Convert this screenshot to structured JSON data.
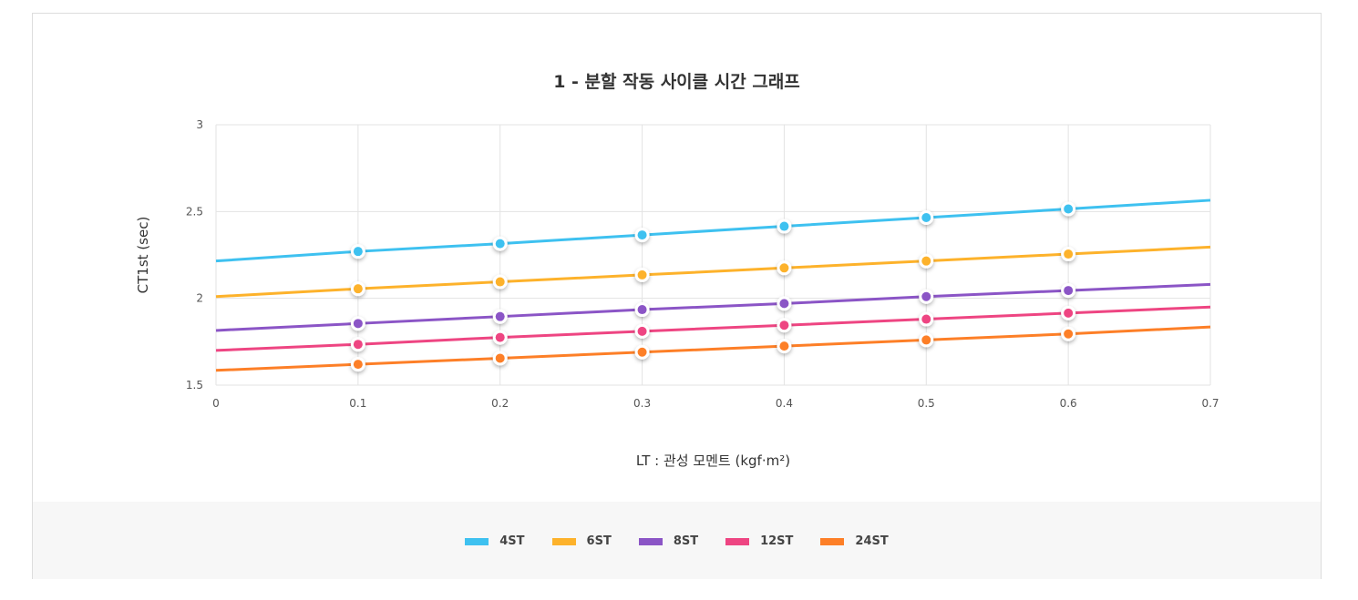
{
  "chart_data": {
    "type": "line",
    "title": "1 - 분할 작동 사이클 시간 그래프",
    "xlabel": "LT : 관성 모멘트 (kgf·m²)",
    "ylabel": "CT1st (sec)",
    "xlim": [
      0,
      0.7
    ],
    "ylim": [
      1.5,
      3
    ],
    "x": [
      0,
      0.1,
      0.2,
      0.3,
      0.4,
      0.5,
      0.6,
      0.7
    ],
    "x_ticks": [
      "0",
      "0.1",
      "0.2",
      "0.3",
      "0.4",
      "0.5",
      "0.6",
      "0.7"
    ],
    "y_ticks": [
      "1.5",
      "2",
      "2.5",
      "3"
    ],
    "markers_at": [
      0.1,
      0.2,
      0.3,
      0.4,
      0.5,
      0.6
    ],
    "grid": true,
    "legend_position": "bottom",
    "series": [
      {
        "name": "4ST",
        "color": "#3ec1f0",
        "values": [
          2.215,
          2.27,
          2.315,
          2.365,
          2.415,
          2.465,
          2.515,
          2.565
        ]
      },
      {
        "name": "6ST",
        "color": "#fdb22b",
        "values": [
          2.01,
          2.055,
          2.095,
          2.135,
          2.175,
          2.215,
          2.255,
          2.295
        ]
      },
      {
        "name": "8ST",
        "color": "#8b55c6",
        "values": [
          1.815,
          1.855,
          1.895,
          1.935,
          1.97,
          2.01,
          2.045,
          2.08
        ]
      },
      {
        "name": "12ST",
        "color": "#ee4582",
        "values": [
          1.7,
          1.735,
          1.775,
          1.81,
          1.845,
          1.88,
          1.915,
          1.95
        ]
      },
      {
        "name": "24ST",
        "color": "#fd7f27",
        "values": [
          1.585,
          1.62,
          1.655,
          1.69,
          1.725,
          1.76,
          1.795,
          1.835
        ]
      }
    ]
  }
}
